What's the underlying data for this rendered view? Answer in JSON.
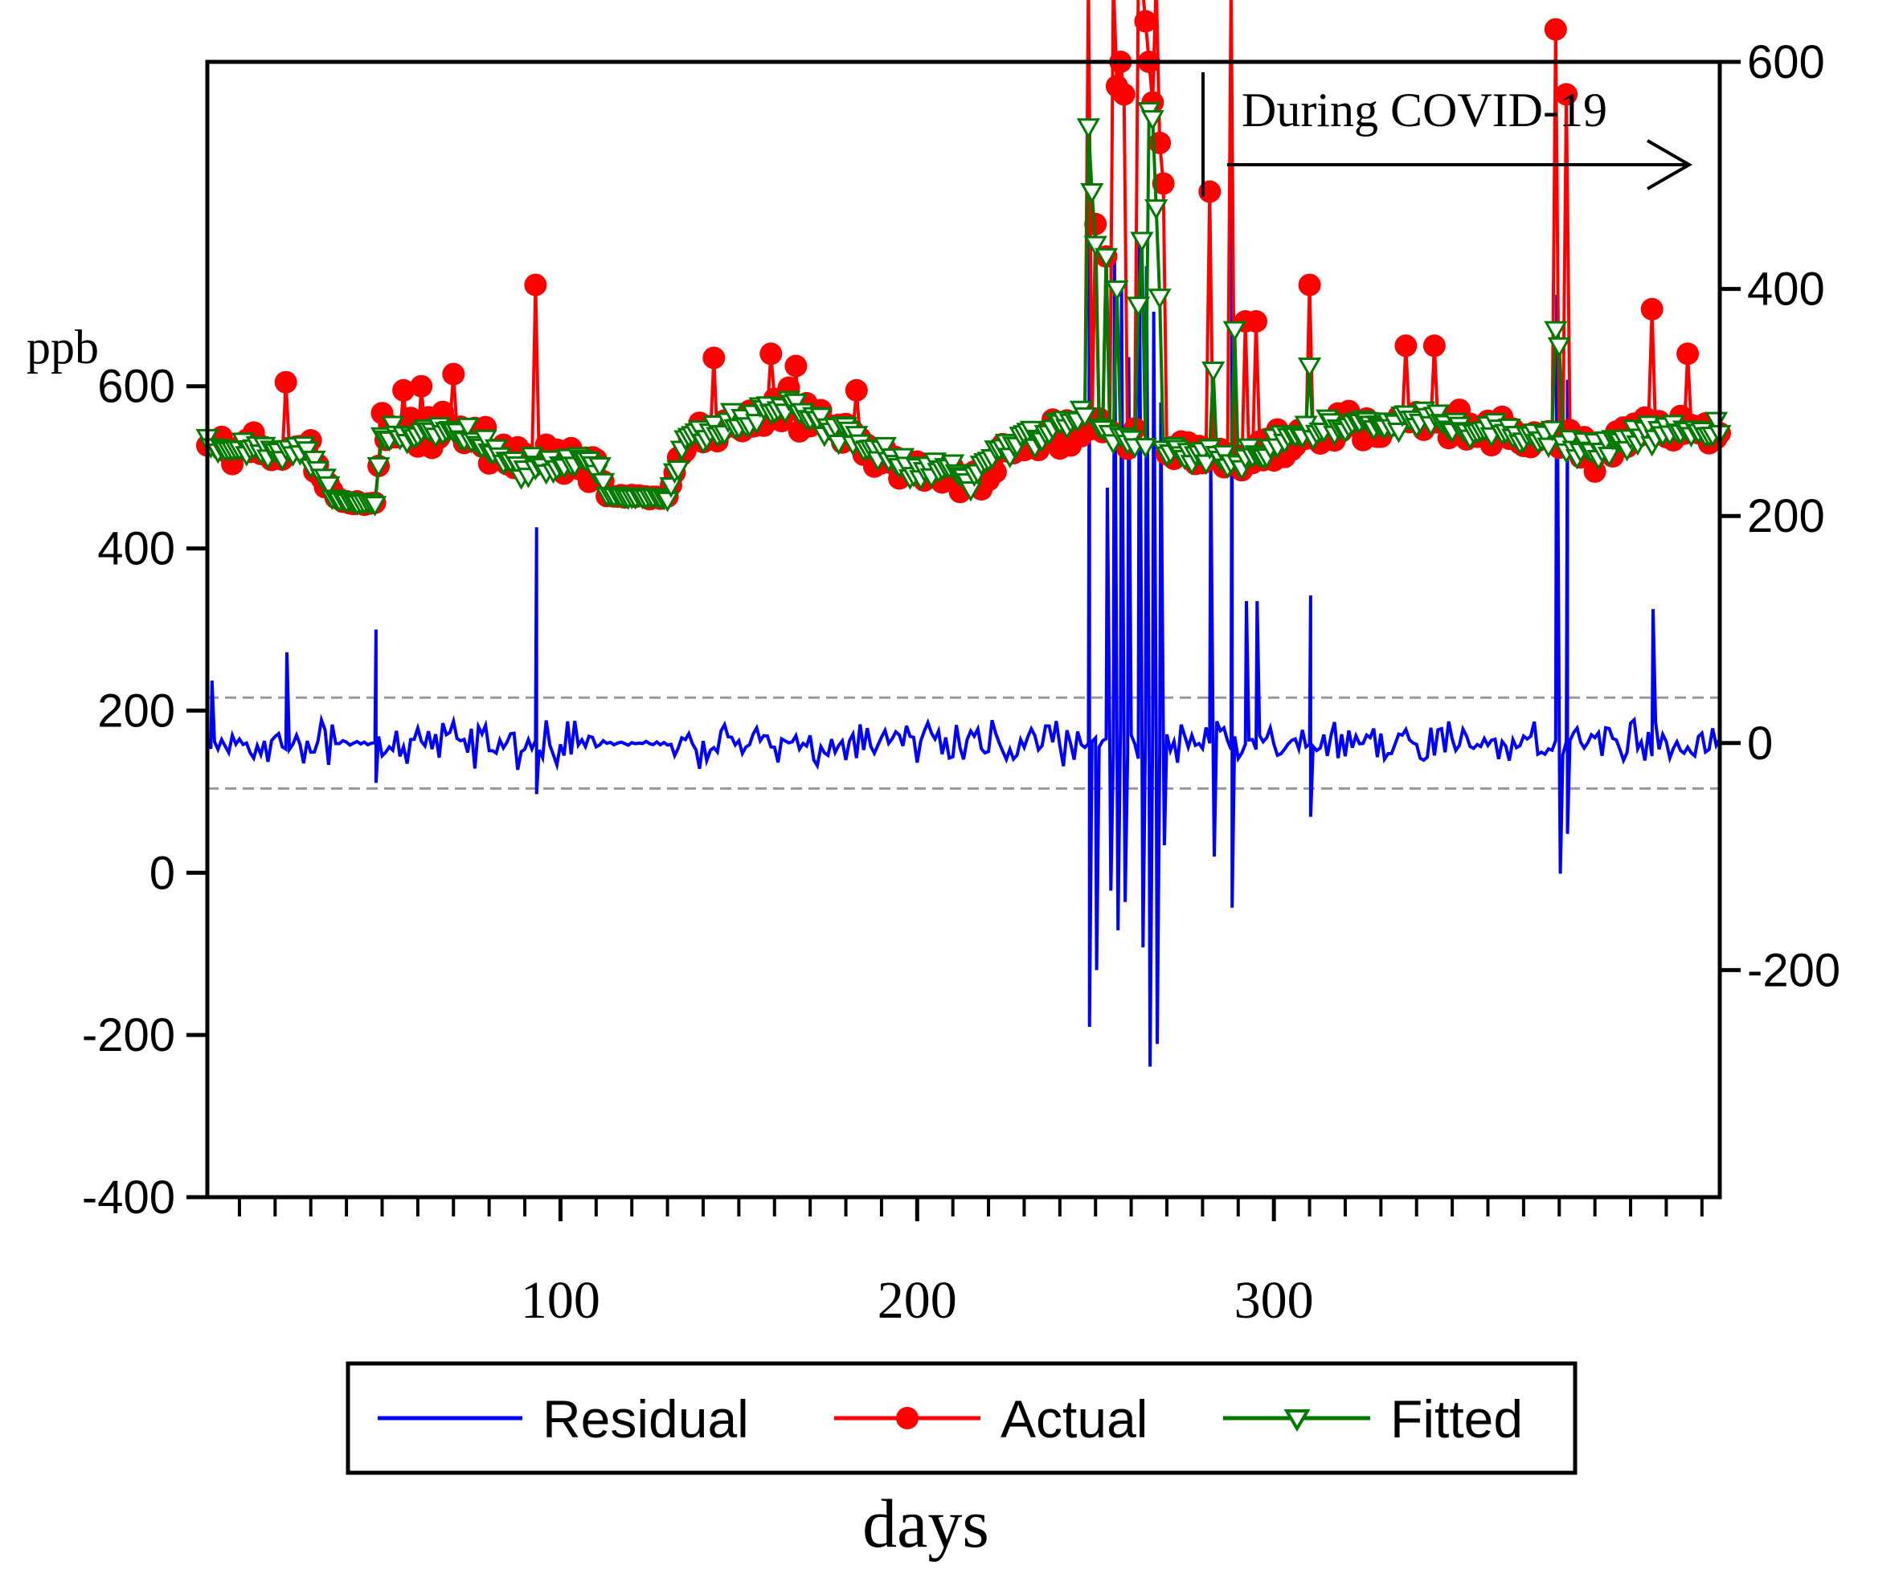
{
  "chart_data": {
    "type": "line",
    "title": "",
    "xlabel": "days",
    "left_axis_unit_label": "ppb",
    "annotation": "During COVID-19",
    "annotation_start_day": 280,
    "x_range": [
      1,
      425
    ],
    "x_ticks": [
      100,
      200,
      300
    ],
    "x_tick_labels": [
      "100",
      "200",
      "300"
    ],
    "x_minor_tick_step": 10,
    "left_axis": {
      "range": [
        -400,
        1000
      ],
      "ticks": [
        -400,
        -200,
        0,
        200,
        400,
        600
      ],
      "labels": [
        "-400",
        "-200",
        "0",
        "200",
        "400",
        "600"
      ],
      "applies_to": [
        "Actual",
        "Fitted"
      ]
    },
    "right_axis": {
      "range": [
        -400,
        600
      ],
      "ticks": [
        -200,
        0,
        200,
        400,
        600
      ],
      "labels": [
        "-200",
        "0",
        "200",
        "400",
        "600"
      ],
      "applies_to": [
        "Residual"
      ]
    },
    "residual_band": [
      -40,
      40
    ],
    "legend": [
      "Residual",
      "Actual",
      "Fitted"
    ],
    "legend_position": "bottom-center",
    "colors": {
      "residual": "#0000ff",
      "actual": "#ff0000",
      "fitted": "#007a00",
      "band": "#999999"
    },
    "series": [
      {
        "name": "Actual",
        "axis": "left",
        "base_level": [
          {
            "x": 1,
            "y": 525
          },
          {
            "x": 30,
            "y": 515
          },
          {
            "x": 37,
            "y": 460
          },
          {
            "x": 48,
            "y": 455
          },
          {
            "x": 50,
            "y": 540
          },
          {
            "x": 70,
            "y": 545
          },
          {
            "x": 90,
            "y": 505
          },
          {
            "x": 110,
            "y": 505
          },
          {
            "x": 113,
            "y": 465
          },
          {
            "x": 130,
            "y": 462
          },
          {
            "x": 135,
            "y": 535
          },
          {
            "x": 165,
            "y": 575
          },
          {
            "x": 195,
            "y": 505
          },
          {
            "x": 215,
            "y": 485
          },
          {
            "x": 225,
            "y": 525
          },
          {
            "x": 245,
            "y": 555
          },
          {
            "x": 270,
            "y": 520
          },
          {
            "x": 290,
            "y": 505
          },
          {
            "x": 310,
            "y": 540
          },
          {
            "x": 340,
            "y": 560
          },
          {
            "x": 370,
            "y": 540
          },
          {
            "x": 390,
            "y": 520
          },
          {
            "x": 405,
            "y": 545
          },
          {
            "x": 425,
            "y": 540
          }
        ],
        "spikes": [
          {
            "x": 23,
            "y": 605
          },
          {
            "x": 56,
            "y": 595
          },
          {
            "x": 61,
            "y": 600
          },
          {
            "x": 70,
            "y": 615
          },
          {
            "x": 93,
            "y": 725
          },
          {
            "x": 143,
            "y": 635
          },
          {
            "x": 159,
            "y": 640
          },
          {
            "x": 166,
            "y": 625
          },
          {
            "x": 183,
            "y": 595
          },
          {
            "x": 248,
            "y": 1100
          },
          {
            "x": 250,
            "y": 800
          },
          {
            "x": 253,
            "y": 760
          },
          {
            "x": 255,
            "y": 1100
          },
          {
            "x": 256,
            "y": 970
          },
          {
            "x": 257,
            "y": 1000
          },
          {
            "x": 258,
            "y": 960
          },
          {
            "x": 262,
            "y": 1100
          },
          {
            "x": 263,
            "y": 1100
          },
          {
            "x": 264,
            "y": 1050
          },
          {
            "x": 265,
            "y": 1000
          },
          {
            "x": 266,
            "y": 950
          },
          {
            "x": 267,
            "y": 1100
          },
          {
            "x": 268,
            "y": 900
          },
          {
            "x": 269,
            "y": 850
          },
          {
            "x": 282,
            "y": 840
          },
          {
            "x": 288,
            "y": 1100
          },
          {
            "x": 292,
            "y": 680
          },
          {
            "x": 295,
            "y": 680
          },
          {
            "x": 310,
            "y": 725
          },
          {
            "x": 337,
            "y": 650
          },
          {
            "x": 345,
            "y": 650
          },
          {
            "x": 379,
            "y": 1040
          },
          {
            "x": 382,
            "y": 960
          },
          {
            "x": 406,
            "y": 695
          },
          {
            "x": 416,
            "y": 640
          }
        ]
      },
      {
        "name": "Fitted",
        "axis": "left",
        "spikes": [
          {
            "x": 248,
            "y": 920
          },
          {
            "x": 249,
            "y": 840
          },
          {
            "x": 250,
            "y": 775
          },
          {
            "x": 253,
            "y": 760
          },
          {
            "x": 256,
            "y": 720
          },
          {
            "x": 262,
            "y": 700
          },
          {
            "x": 263,
            "y": 780
          },
          {
            "x": 265,
            "y": 940
          },
          {
            "x": 266,
            "y": 930
          },
          {
            "x": 267,
            "y": 820
          },
          {
            "x": 268,
            "y": 710
          },
          {
            "x": 283,
            "y": 620
          },
          {
            "x": 289,
            "y": 670
          },
          {
            "x": 310,
            "y": 625
          },
          {
            "x": 379,
            "y": 670
          },
          {
            "x": 380,
            "y": 650
          }
        ]
      },
      {
        "name": "Residual",
        "axis": "right",
        "spikes": [
          {
            "x": 2,
            "y": 55
          },
          {
            "x": 23,
            "y": 80
          },
          {
            "x": 48,
            "y": 100
          },
          {
            "x": 48,
            "y": -35
          },
          {
            "x": 93,
            "y": 190
          },
          {
            "x": 93,
            "y": -45
          },
          {
            "x": 248,
            "y": 450
          },
          {
            "x": 248,
            "y": -250
          },
          {
            "x": 250,
            "y": -200
          },
          {
            "x": 253,
            "y": 225
          },
          {
            "x": 254,
            "y": -130
          },
          {
            "x": 255,
            "y": 430
          },
          {
            "x": 256,
            "y": -165
          },
          {
            "x": 257,
            "y": 400
          },
          {
            "x": 258,
            "y": -140
          },
          {
            "x": 259,
            "y": 340
          },
          {
            "x": 262,
            "y": 440
          },
          {
            "x": 263,
            "y": -180
          },
          {
            "x": 264,
            "y": 420
          },
          {
            "x": 265,
            "y": -285
          },
          {
            "x": 266,
            "y": 380
          },
          {
            "x": 267,
            "y": -265
          },
          {
            "x": 268,
            "y": 300
          },
          {
            "x": 269,
            "y": -90
          },
          {
            "x": 282,
            "y": 250
          },
          {
            "x": 283,
            "y": -100
          },
          {
            "x": 288,
            "y": 480
          },
          {
            "x": 288,
            "y": -145
          },
          {
            "x": 292,
            "y": 125
          },
          {
            "x": 295,
            "y": 125
          },
          {
            "x": 310,
            "y": 130
          },
          {
            "x": 310,
            "y": -65
          },
          {
            "x": 379,
            "y": 395
          },
          {
            "x": 380,
            "y": -115
          },
          {
            "x": 382,
            "y": 320
          },
          {
            "x": 382,
            "y": -80
          },
          {
            "x": 406,
            "y": 118
          }
        ]
      }
    ]
  }
}
